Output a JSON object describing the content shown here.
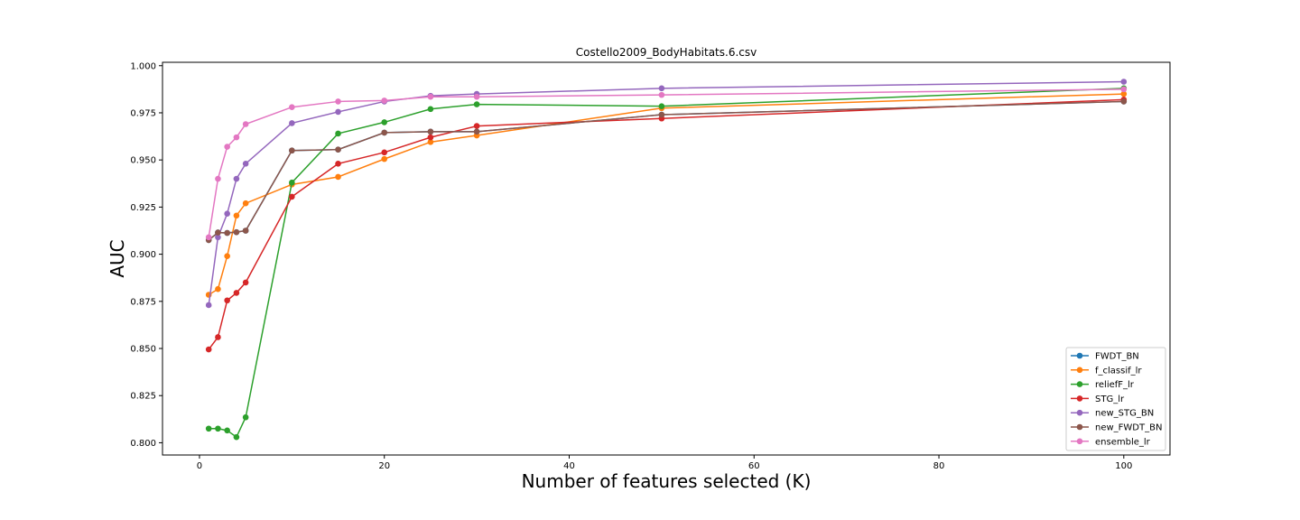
{
  "chart_data": {
    "type": "line",
    "title": "Costello2009_BodyHabitats.6.csv",
    "xlabel": "Number of features selected (K)",
    "ylabel": "AUC",
    "xlim": [
      -4,
      105
    ],
    "ylim": [
      0.7935,
      1.0018
    ],
    "xticks": [
      0,
      20,
      40,
      60,
      80,
      100
    ],
    "yticks": [
      0.8,
      0.825,
      0.85,
      0.875,
      0.9,
      0.925,
      0.95,
      0.975,
      1.0
    ],
    "ytick_labels": [
      "0.800",
      "0.825",
      "0.850",
      "0.875",
      "0.900",
      "0.925",
      "0.950",
      "0.975",
      "1.000"
    ],
    "grid": false,
    "legend_position": "lower-right",
    "marker": "circle",
    "x": [
      1,
      2,
      3,
      4,
      5,
      10,
      15,
      20,
      25,
      30,
      50,
      100
    ],
    "series": [
      {
        "name": "FWDT_BN",
        "color": "#1f77b4",
        "values": [
          0.9075,
          0.9115,
          0.9113,
          0.9117,
          0.9125,
          0.955,
          0.9555,
          0.9645,
          0.965,
          0.965,
          0.974,
          0.981
        ]
      },
      {
        "name": "f_classif_lr",
        "color": "#ff7f0e",
        "values": [
          0.8785,
          0.8815,
          0.899,
          0.9205,
          0.927,
          0.937,
          0.941,
          0.9505,
          0.9595,
          0.963,
          0.9775,
          0.985
        ]
      },
      {
        "name": "reliefF_lr",
        "color": "#2ca02c",
        "values": [
          0.8075,
          0.8075,
          0.8065,
          0.803,
          0.8135,
          0.938,
          0.964,
          0.97,
          0.977,
          0.9795,
          0.9785,
          0.988
        ]
      },
      {
        "name": "STG_lr",
        "color": "#d62728",
        "values": [
          0.8495,
          0.856,
          0.8755,
          0.8795,
          0.885,
          0.9305,
          0.948,
          0.954,
          0.962,
          0.968,
          0.972,
          0.982
        ]
      },
      {
        "name": "new_STG_BN",
        "color": "#9467bd",
        "values": [
          0.873,
          0.909,
          0.9215,
          0.94,
          0.948,
          0.9695,
          0.9755,
          0.981,
          0.984,
          0.985,
          0.988,
          0.9915
        ]
      },
      {
        "name": "new_FWDT_BN",
        "color": "#8c564b",
        "values": [
          0.9075,
          0.9115,
          0.9113,
          0.9117,
          0.9125,
          0.955,
          0.9555,
          0.9645,
          0.965,
          0.965,
          0.974,
          0.981
        ]
      },
      {
        "name": "ensemble_lr",
        "color": "#e377c2",
        "values": [
          0.909,
          0.94,
          0.957,
          0.962,
          0.969,
          0.978,
          0.981,
          0.9815,
          0.9835,
          0.9835,
          0.9845,
          0.9875
        ]
      }
    ]
  }
}
